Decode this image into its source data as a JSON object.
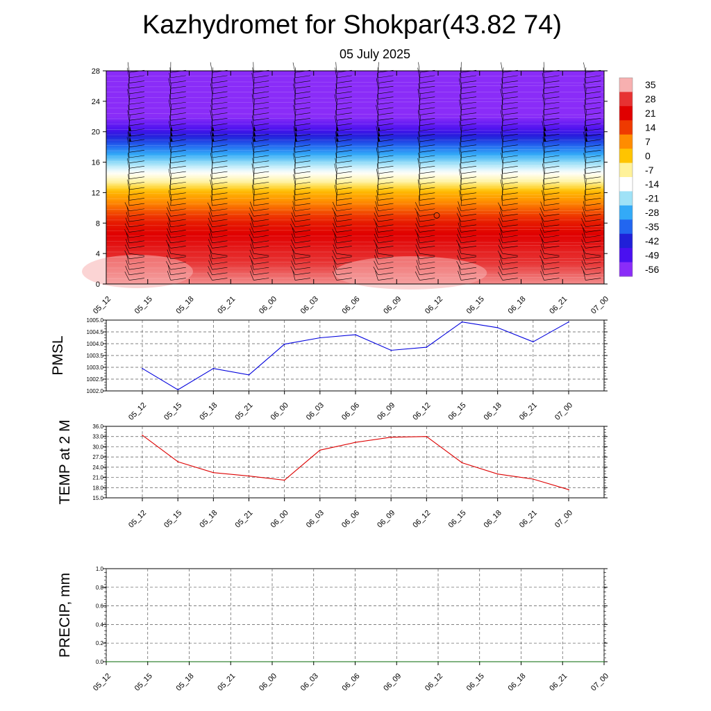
{
  "header": {
    "title": "Kazhydromet for Shokpar(43.82 74)",
    "date": "05 July 2025"
  },
  "chart_data": [
    {
      "type": "heatmap",
      "panel": "cross-section",
      "x_ticks": [
        "05_12",
        "05_15",
        "05_18",
        "05_21",
        "06_00",
        "06_03",
        "06_06",
        "06_09",
        "06_12",
        "06_15",
        "06_18",
        "06_21",
        "07_00"
      ],
      "y_ticks": [
        0,
        4,
        8,
        12,
        16,
        20,
        24,
        28
      ],
      "ylim": [
        0,
        28
      ],
      "colorbar_labels": [
        "35",
        "28",
        "21",
        "14",
        "7",
        "0",
        "-7",
        "-14",
        "-21",
        "-28",
        "-35",
        "-42",
        "-49",
        "-56"
      ],
      "colorbar_colors": [
        "#f7b0b0",
        "#e73232",
        "#e00000",
        "#ef3a00",
        "#ff8c00",
        "#ffc400",
        "#fff29a",
        "#ffffff",
        "#9fe2f7",
        "#33aaf7",
        "#2266f0",
        "#2020d8",
        "#4a10f0",
        "#8a2cf8"
      ],
      "temperature_profile": [
        {
          "h": 0,
          "t": 33
        },
        {
          "h": 4,
          "t": 26
        },
        {
          "h": 8,
          "t": 18
        },
        {
          "h": 10,
          "t": 10
        },
        {
          "h": 12,
          "t": 2
        },
        {
          "h": 13.5,
          "t": -8
        },
        {
          "h": 15,
          "t": -16
        },
        {
          "h": 17,
          "t": -28
        },
        {
          "h": 19,
          "t": -40
        },
        {
          "h": 20.5,
          "t": -50
        },
        {
          "h": 22,
          "t": -56
        },
        {
          "h": 28,
          "t": -58
        }
      ],
      "grid": false
    },
    {
      "type": "line",
      "panel": "pmsl",
      "ylabel": "PMSL",
      "categories": [
        "05_12",
        "05_15",
        "05_18",
        "05_21",
        "06_00",
        "06_03",
        "06_06",
        "06_09",
        "06_12",
        "06_15",
        "06_18",
        "06_21",
        "07_00"
      ],
      "values": [
        1002.95,
        1002.05,
        1002.95,
        1002.68,
        1003.98,
        1004.25,
        1004.38,
        1003.72,
        1003.85,
        1004.92,
        1004.68,
        1004.08,
        1004.92
      ],
      "ylim": [
        1002.0,
        1005.0
      ],
      "y_ticks": [
        "1002.0",
        "1002.5",
        "1003.0",
        "1003.5",
        "1004.0",
        "1004.5",
        "1005.0"
      ],
      "color": "#0000dd",
      "grid": true
    },
    {
      "type": "line",
      "panel": "temp2m",
      "ylabel": "TEMP at 2 M",
      "categories": [
        "05_12",
        "05_15",
        "05_18",
        "05_21",
        "06_00",
        "06_03",
        "06_06",
        "06_09",
        "06_12",
        "06_15",
        "06_18",
        "06_21",
        "07_00"
      ],
      "values": [
        33.4,
        25.6,
        22.4,
        21.4,
        20.2,
        29.0,
        31.3,
        32.8,
        33.0,
        25.3,
        22.0,
        20.5,
        17.4
      ],
      "ylim": [
        15.0,
        36.0
      ],
      "y_ticks": [
        "15.0",
        "18.0",
        "21.0",
        "24.0",
        "27.0",
        "30.0",
        "33.0",
        "36.0"
      ],
      "color": "#dd0000",
      "grid": true
    },
    {
      "type": "line",
      "panel": "precip",
      "ylabel": "PRECIP, mm",
      "categories": [
        "05_12",
        "05_15",
        "05_18",
        "05_21",
        "06_00",
        "06_03",
        "06_06",
        "06_09",
        "06_12",
        "06_15",
        "06_18",
        "06_21",
        "07_00"
      ],
      "values": [
        0,
        0,
        0,
        0,
        0,
        0,
        0,
        0,
        0,
        0,
        0,
        0,
        0
      ],
      "ylim": [
        0.0,
        1.0
      ],
      "y_ticks": [
        "0.0",
        "0.2",
        "0.4",
        "0.6",
        "0.8",
        "1.0"
      ],
      "color": "#006400",
      "grid": true
    }
  ]
}
